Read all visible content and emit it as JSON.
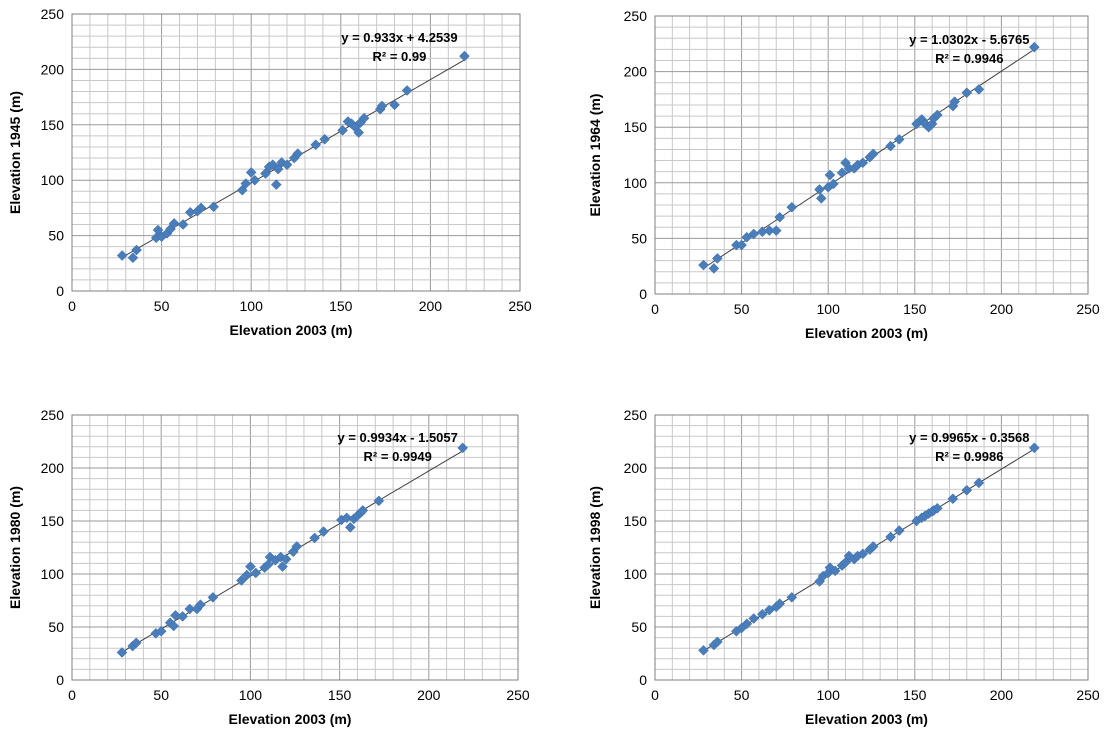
{
  "chart_data": [
    {
      "type": "scatter",
      "xlabel": "Elevation 2003 (m)",
      "ylabel": "Elevation 1945 (m)",
      "xlim": [
        0,
        250
      ],
      "ylim": [
        0,
        250
      ],
      "xticks": [
        "0",
        "50",
        "100",
        "150",
        "200",
        "250"
      ],
      "yticks": [
        "0",
        "50",
        "100",
        "150",
        "200",
        "250"
      ],
      "grid": "on",
      "marker_color": "#4a7ebb",
      "trendline": {
        "slope": 0.933,
        "intercept": 4.2539
      },
      "equation": "y = 0.933x + 4.2539",
      "r2": "R² = 0.99",
      "points": [
        [
          28,
          32
        ],
        [
          34,
          30
        ],
        [
          36,
          37
        ],
        [
          47,
          48
        ],
        [
          48,
          55
        ],
        [
          50,
          49
        ],
        [
          53,
          52
        ],
        [
          55,
          56
        ],
        [
          57,
          61
        ],
        [
          62,
          60
        ],
        [
          66,
          71
        ],
        [
          70,
          72
        ],
        [
          72,
          75
        ],
        [
          79,
          76
        ],
        [
          95,
          91
        ],
        [
          97,
          97
        ],
        [
          100,
          107
        ],
        [
          102,
          100
        ],
        [
          108,
          106
        ],
        [
          110,
          112
        ],
        [
          112,
          114
        ],
        [
          114,
          96
        ],
        [
          115,
          110
        ],
        [
          117,
          116
        ],
        [
          120,
          114
        ],
        [
          124,
          120
        ],
        [
          126,
          124
        ],
        [
          136,
          132
        ],
        [
          141,
          137
        ],
        [
          151,
          145
        ],
        [
          154,
          153
        ],
        [
          156,
          151
        ],
        [
          158,
          148
        ],
        [
          160,
          143
        ],
        [
          161,
          152
        ],
        [
          163,
          156
        ],
        [
          172,
          164
        ],
        [
          173,
          167
        ],
        [
          180,
          168
        ],
        [
          187,
          181
        ],
        [
          219,
          212
        ]
      ]
    },
    {
      "type": "scatter",
      "xlabel": "Elevation 2003 (m)",
      "ylabel": "Elevation 1964 (m)",
      "xlim": [
        0,
        250
      ],
      "ylim": [
        0,
        250
      ],
      "xticks": [
        "0",
        "50",
        "100",
        "150",
        "200",
        "250"
      ],
      "yticks": [
        "0",
        "50",
        "100",
        "150",
        "200",
        "250"
      ],
      "grid": "on",
      "marker_color": "#4a7ebb",
      "trendline": {
        "slope": 1.0302,
        "intercept": -5.6765
      },
      "equation": "y = 1.0302x - 5.6765",
      "r2": "R² = 0.9946",
      "points": [
        [
          28,
          26
        ],
        [
          34,
          23
        ],
        [
          36,
          32
        ],
        [
          47,
          44
        ],
        [
          50,
          44
        ],
        [
          53,
          51
        ],
        [
          57,
          54
        ],
        [
          62,
          56
        ],
        [
          66,
          57
        ],
        [
          70,
          57
        ],
        [
          72,
          69
        ],
        [
          79,
          78
        ],
        [
          95,
          94
        ],
        [
          96,
          86
        ],
        [
          100,
          96
        ],
        [
          101,
          107
        ],
        [
          103,
          99
        ],
        [
          108,
          109
        ],
        [
          110,
          118
        ],
        [
          112,
          113
        ],
        [
          115,
          113
        ],
        [
          117,
          116
        ],
        [
          120,
          118
        ],
        [
          124,
          123
        ],
        [
          126,
          126
        ],
        [
          136,
          133
        ],
        [
          141,
          139
        ],
        [
          151,
          153
        ],
        [
          154,
          157
        ],
        [
          156,
          153
        ],
        [
          158,
          150
        ],
        [
          160,
          153
        ],
        [
          161,
          158
        ],
        [
          163,
          161
        ],
        [
          172,
          169
        ],
        [
          173,
          173
        ],
        [
          180,
          181
        ],
        [
          187,
          184
        ],
        [
          219,
          222
        ]
      ]
    },
    {
      "type": "scatter",
      "xlabel": "Elevation 2003 (m)",
      "ylabel": "Elevation 1980 (m)",
      "xlim": [
        0,
        250
      ],
      "ylim": [
        0,
        250
      ],
      "xticks": [
        "0",
        "50",
        "100",
        "150",
        "200",
        "250"
      ],
      "yticks": [
        "0",
        "50",
        "100",
        "150",
        "200",
        "250"
      ],
      "grid": "on",
      "marker_color": "#4a7ebb",
      "trendline": {
        "slope": 0.9934,
        "intercept": -1.5057
      },
      "equation": "y = 0.9934x - 1.5057",
      "r2": "R² = 0.9949",
      "points": [
        [
          28,
          26
        ],
        [
          34,
          32
        ],
        [
          36,
          35
        ],
        [
          47,
          44
        ],
        [
          50,
          46
        ],
        [
          55,
          54
        ],
        [
          57,
          51
        ],
        [
          58,
          61
        ],
        [
          62,
          60
        ],
        [
          66,
          67
        ],
        [
          70,
          67
        ],
        [
          72,
          71
        ],
        [
          79,
          78
        ],
        [
          95,
          94
        ],
        [
          98,
          99
        ],
        [
          100,
          107
        ],
        [
          103,
          101
        ],
        [
          108,
          106
        ],
        [
          110,
          109
        ],
        [
          111,
          116
        ],
        [
          114,
          113
        ],
        [
          117,
          116
        ],
        [
          118,
          107
        ],
        [
          120,
          114
        ],
        [
          124,
          121
        ],
        [
          126,
          126
        ],
        [
          136,
          134
        ],
        [
          141,
          140
        ],
        [
          151,
          151
        ],
        [
          154,
          153
        ],
        [
          156,
          144
        ],
        [
          158,
          152
        ],
        [
          160,
          155
        ],
        [
          162,
          158
        ],
        [
          163,
          160
        ],
        [
          172,
          169
        ],
        [
          219,
          219
        ]
      ]
    },
    {
      "type": "scatter",
      "xlabel": "Elevation 2003 (m)",
      "ylabel": "Elevation 1998 (m)",
      "xlim": [
        0,
        250
      ],
      "ylim": [
        0,
        250
      ],
      "xticks": [
        "0",
        "50",
        "100",
        "150",
        "200",
        "250"
      ],
      "yticks": [
        "0",
        "50",
        "100",
        "150",
        "200",
        "250"
      ],
      "grid": "on",
      "marker_color": "#4a7ebb",
      "trendline": {
        "slope": 0.9965,
        "intercept": -0.3568
      },
      "equation": "y = 0.9965x - 0.3568",
      "r2": "R² = 0.9986",
      "points": [
        [
          28,
          28
        ],
        [
          34,
          33
        ],
        [
          36,
          36
        ],
        [
          47,
          46
        ],
        [
          50,
          49
        ],
        [
          53,
          53
        ],
        [
          57,
          58
        ],
        [
          62,
          62
        ],
        [
          66,
          66
        ],
        [
          70,
          69
        ],
        [
          72,
          72
        ],
        [
          79,
          78
        ],
        [
          95,
          93
        ],
        [
          97,
          98
        ],
        [
          100,
          101
        ],
        [
          101,
          106
        ],
        [
          104,
          103
        ],
        [
          108,
          108
        ],
        [
          110,
          111
        ],
        [
          112,
          117
        ],
        [
          115,
          114
        ],
        [
          117,
          117
        ],
        [
          120,
          119
        ],
        [
          124,
          123
        ],
        [
          126,
          126
        ],
        [
          136,
          135
        ],
        [
          141,
          141
        ],
        [
          151,
          150
        ],
        [
          154,
          153
        ],
        [
          156,
          155
        ],
        [
          158,
          157
        ],
        [
          160,
          159
        ],
        [
          161,
          160
        ],
        [
          163,
          162
        ],
        [
          172,
          171
        ],
        [
          180,
          179
        ],
        [
          187,
          186
        ],
        [
          219,
          219
        ]
      ]
    }
  ]
}
